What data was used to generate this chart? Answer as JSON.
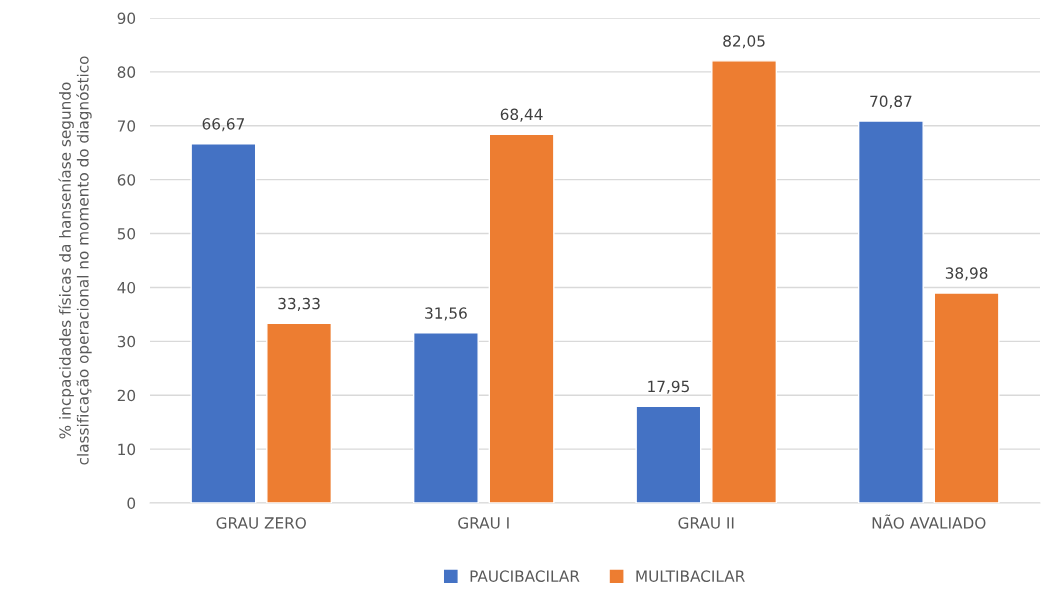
{
  "chart_data": {
    "type": "bar",
    "ylabel": "% incpacidades físicas da hanseníase segundo\nclassificação operacional no momento do diagnóstico",
    "categories": [
      "GRAU ZERO",
      "GRAU I",
      "GRAU II",
      "NÃO AVALIADO"
    ],
    "series": [
      {
        "name": "PAUCIBACILAR",
        "color": "#4472c4",
        "values": [
          66.67,
          31.56,
          17.95,
          70.87
        ],
        "value_labels": [
          "66,67",
          "31,56",
          "17,95",
          "70,87"
        ]
      },
      {
        "name": "MULTIBACILAR",
        "color": "#ed7d31",
        "values": [
          33.33,
          68.44,
          82.05,
          38.98
        ],
        "value_labels": [
          "33,33",
          "68,44",
          "82,05",
          "38,98"
        ]
      }
    ],
    "ylim": [
      0,
      90
    ],
    "yticks": [
      0,
      10,
      20,
      30,
      40,
      50,
      60,
      70,
      80,
      90
    ],
    "grid": "y",
    "legend": "bottom"
  }
}
